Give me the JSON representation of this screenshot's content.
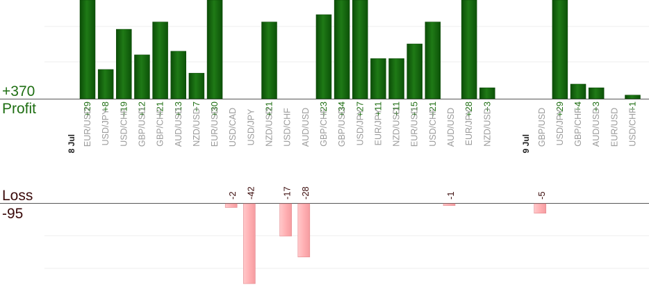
{
  "summary": {
    "profit_total": "+370",
    "profit_label": "Profit",
    "loss_label": "Loss",
    "loss_total": "-95"
  },
  "colors": {
    "profit_bar": "#1a6b12",
    "profit_text": "#1e6e12",
    "loss_bar": "#ffb6b9",
    "loss_text": "#3a0a0a",
    "pair_text": "#9a9a9a",
    "date_text": "#222222"
  },
  "chart_data": {
    "type": "bar",
    "profit_scale_max": 27,
    "loss_scale_max": 42,
    "categories": [
      {
        "date": "8 Jul",
        "pair": "EUR/USD",
        "profit": 29,
        "loss": null,
        "profit_label": "+29",
        "loss_label": ""
      },
      {
        "date": "",
        "pair": "USD/JPY",
        "profit": 8,
        "loss": null,
        "profit_label": "+8",
        "loss_label": ""
      },
      {
        "date": "",
        "pair": "USD/CHF",
        "profit": 19,
        "loss": null,
        "profit_label": "+19",
        "loss_label": ""
      },
      {
        "date": "",
        "pair": "GBP/USD",
        "profit": 12,
        "loss": null,
        "profit_label": "+12",
        "loss_label": ""
      },
      {
        "date": "",
        "pair": "GBP/CHF",
        "profit": 21,
        "loss": null,
        "profit_label": "+21",
        "loss_label": ""
      },
      {
        "date": "",
        "pair": "AUD/USD",
        "profit": 13,
        "loss": null,
        "profit_label": "+13",
        "loss_label": ""
      },
      {
        "date": "",
        "pair": "NZD/USD",
        "profit": 7,
        "loss": null,
        "profit_label": "+7",
        "loss_label": ""
      },
      {
        "date": "",
        "pair": "EUR/USD",
        "profit": 30,
        "loss": null,
        "profit_label": "+30",
        "loss_label": ""
      },
      {
        "date": "",
        "pair": "USD/CAD",
        "profit": null,
        "loss": 2,
        "profit_label": "",
        "loss_label": "-2"
      },
      {
        "date": "",
        "pair": "USD/JPY",
        "profit": null,
        "loss": 42,
        "profit_label": "",
        "loss_label": "-42"
      },
      {
        "date": "",
        "pair": "NZD/USD",
        "profit": 21,
        "loss": null,
        "profit_label": "+21",
        "loss_label": ""
      },
      {
        "date": "",
        "pair": "USD/CHF",
        "profit": null,
        "loss": 17,
        "profit_label": "",
        "loss_label": "-17"
      },
      {
        "date": "",
        "pair": "AUD/USD",
        "profit": null,
        "loss": 28,
        "profit_label": "",
        "loss_label": "-28"
      },
      {
        "date": "",
        "pair": "GBP/CHF",
        "profit": 23,
        "loss": null,
        "profit_label": "+23",
        "loss_label": ""
      },
      {
        "date": "",
        "pair": "GBP/USD",
        "profit": 34,
        "loss": null,
        "profit_label": "+34",
        "loss_label": ""
      },
      {
        "date": "",
        "pair": "USD/JPY",
        "profit": 27,
        "loss": null,
        "profit_label": "+27",
        "loss_label": ""
      },
      {
        "date": "",
        "pair": "EUR/JPY",
        "profit": 11,
        "loss": null,
        "profit_label": "+11",
        "loss_label": ""
      },
      {
        "date": "",
        "pair": "NZD/USD",
        "profit": 11,
        "loss": null,
        "profit_label": "+11",
        "loss_label": ""
      },
      {
        "date": "",
        "pair": "EUR/USD",
        "profit": 15,
        "loss": null,
        "profit_label": "+15",
        "loss_label": ""
      },
      {
        "date": "",
        "pair": "USD/CHF",
        "profit": 21,
        "loss": null,
        "profit_label": "+21",
        "loss_label": ""
      },
      {
        "date": "",
        "pair": "AUD/USD",
        "profit": null,
        "loss": 1,
        "profit_label": "",
        "loss_label": "-1"
      },
      {
        "date": "",
        "pair": "EUR/JPY",
        "profit": 28,
        "loss": null,
        "profit_label": "+28",
        "loss_label": ""
      },
      {
        "date": "",
        "pair": "NZD/USD",
        "profit": 3,
        "loss": null,
        "profit_label": "+3",
        "loss_label": ""
      },
      {
        "date": "",
        "pair": "",
        "profit": null,
        "loss": null,
        "profit_label": "",
        "loss_label": ""
      },
      {
        "date": "",
        "pair": "",
        "profit": null,
        "loss": null,
        "profit_label": "",
        "loss_label": ""
      },
      {
        "date": "9 Jul",
        "pair": "GBP/USD",
        "profit": null,
        "loss": 5,
        "profit_label": "",
        "loss_label": "-5"
      },
      {
        "date": "",
        "pair": "USD/JPY",
        "profit": 29,
        "loss": null,
        "profit_label": "+29",
        "loss_label": ""
      },
      {
        "date": "",
        "pair": "GBP/CHF",
        "profit": 4,
        "loss": null,
        "profit_label": "+4",
        "loss_label": ""
      },
      {
        "date": "",
        "pair": "AUD/USD",
        "profit": 3,
        "loss": null,
        "profit_label": "+3",
        "loss_label": ""
      },
      {
        "date": "",
        "pair": "EUR/USD",
        "profit": null,
        "loss": null,
        "profit_label": "",
        "loss_label": ""
      },
      {
        "date": "",
        "pair": "USD/CHF",
        "profit": 1,
        "loss": null,
        "profit_label": "+1",
        "loss_label": ""
      }
    ]
  }
}
